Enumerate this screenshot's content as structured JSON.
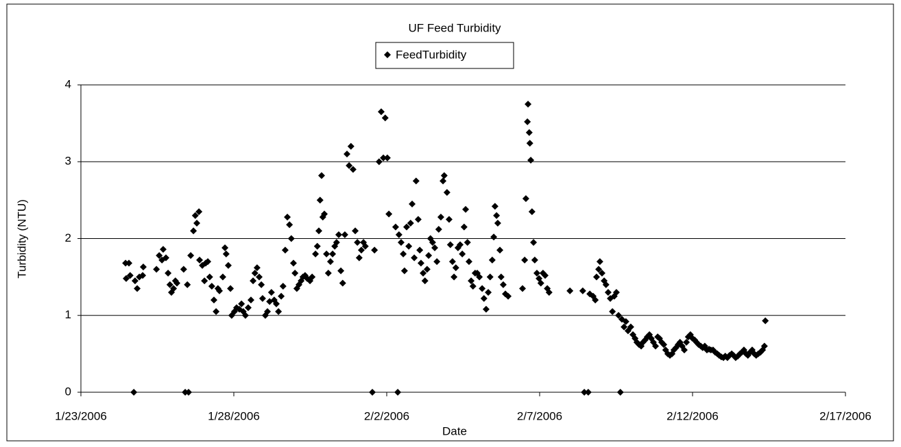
{
  "chart_data": {
    "type": "scatter",
    "title": "UF Feed Turbidity",
    "xlabel": "Date",
    "ylabel": "Turbidity (NTU)",
    "xlim": [
      38740,
      38765
    ],
    "xticks": [
      {
        "value": 38740,
        "label": "1/23/2006"
      },
      {
        "value": 38745,
        "label": "1/28/2006"
      },
      {
        "value": 38750,
        "label": "2/2/2006"
      },
      {
        "value": 38755,
        "label": "2/7/2006"
      },
      {
        "value": 38760,
        "label": "2/12/2006"
      },
      {
        "value": 38765,
        "label": "2/17/2006"
      }
    ],
    "ylim": [
      0,
      4
    ],
    "yticks": [
      0,
      1,
      2,
      3,
      4
    ],
    "grid": true,
    "legend": "top",
    "series": [
      {
        "name": "FeedTurbidity",
        "color": "#000000",
        "x": [
          38741.46,
          38741.57,
          38741.48,
          38741.61,
          38741.73,
          38741.77,
          38741.84,
          38741.91,
          38742.02,
          38742.04,
          38742.47,
          38742.56,
          38742.65,
          38742.69,
          38742.78,
          38742.85,
          38742.91,
          38742.96,
          38743.03,
          38743.09,
          38743.14,
          38743.36,
          38743.41,
          38743.48,
          38743.52,
          38743.59,
          38743.68,
          38743.74,
          38743.79,
          38743.86,
          38743.88,
          38743.97,
          38744.04,
          38744.08,
          38744.15,
          38744.21,
          38744.28,
          38744.35,
          38744.42,
          38744.48,
          38744.53,
          38744.64,
          38744.71,
          38744.75,
          38744.82,
          38744.89,
          38744.93,
          38745.02,
          38745.09,
          38745.18,
          38745.25,
          38745.31,
          38745.38,
          38745.47,
          38745.56,
          38745.63,
          38745.69,
          38745.76,
          38745.83,
          38745.9,
          38745.94,
          38746.03,
          38746.1,
          38746.17,
          38746.23,
          38746.32,
          38746.39,
          38746.46,
          38746.55,
          38746.61,
          38746.68,
          38746.75,
          38746.82,
          38746.88,
          38746.95,
          38747.0,
          38747.06,
          38747.13,
          38747.2,
          38747.26,
          38747.33,
          38747.4,
          38747.49,
          38747.56,
          38747.67,
          38747.73,
          38747.78,
          38747.82,
          38747.87,
          38747.91,
          38747.96,
          38748.03,
          38748.09,
          38748.16,
          38748.23,
          38748.3,
          38748.36,
          38748.43,
          38748.5,
          38748.56,
          38748.63,
          38748.7,
          38748.77,
          38748.83,
          38748.9,
          38748.97,
          38749.04,
          38749.1,
          38749.17,
          38749.24,
          38749.3,
          38749.53,
          38749.6,
          38749.75,
          38749.82,
          38749.89,
          38749.95,
          38750.02,
          38750.07,
          38750.29,
          38750.36,
          38750.4,
          38750.47,
          38750.54,
          38750.58,
          38750.65,
          38750.72,
          38750.78,
          38750.83,
          38750.9,
          38750.96,
          38751.03,
          38751.08,
          38751.12,
          38751.19,
          38751.25,
          38751.32,
          38751.37,
          38751.43,
          38751.5,
          38751.57,
          38751.64,
          38751.7,
          38751.77,
          38751.84,
          38751.88,
          38751.97,
          38752.04,
          38752.08,
          38752.15,
          38752.2,
          38752.26,
          38752.33,
          38752.4,
          38752.47,
          38752.53,
          38752.58,
          38752.64,
          38752.69,
          38752.76,
          38752.82,
          38752.89,
          38752.96,
          38753.03,
          38753.12,
          38753.18,
          38753.25,
          38753.32,
          38753.38,
          38753.45,
          38753.5,
          38753.54,
          38753.59,
          38753.63,
          38753.7,
          38753.74,
          38753.81,
          38753.88,
          38753.97,
          38754.44,
          38754.51,
          38754.55,
          38754.6,
          38754.62,
          38754.66,
          38754.68,
          38754.71,
          38754.75,
          38754.8,
          38754.84,
          38754.91,
          38754.98,
          38755.04,
          38755.11,
          38755.18,
          38755.25,
          38755.31,
          38755.99,
          38756.41,
          38756.46,
          38756.59,
          38756.64,
          38756.75,
          38756.82,
          38756.86,
          38756.93,
          38756.97,
          38757.04,
          38757.11,
          38757.17,
          38757.24,
          38757.31,
          38757.38,
          38757.44,
          38757.51,
          38757.58,
          38757.64,
          38757.69,
          38757.76,
          38757.82,
          38757.89,
          38757.98,
          38758.05,
          38758.12,
          38758.18,
          38758.25,
          38758.32,
          38758.38,
          38758.45,
          38758.52,
          38758.59,
          38758.65,
          38758.72,
          38758.79,
          38758.86,
          38758.92,
          38758.99,
          38759.06,
          38759.12,
          38759.19,
          38759.26,
          38759.33,
          38759.39,
          38759.46,
          38759.53,
          38759.59,
          38759.66,
          38759.73,
          38759.8,
          38759.86,
          38759.93,
          38760.0,
          38760.07,
          38760.13,
          38760.2,
          38760.27,
          38760.33,
          38760.4,
          38760.47,
          38760.54,
          38760.6,
          38760.67,
          38760.74,
          38760.81,
          38760.87,
          38760.94,
          38761.01,
          38761.07,
          38761.14,
          38761.21,
          38761.28,
          38761.34,
          38761.41,
          38761.48,
          38761.55,
          38761.61,
          38761.68,
          38761.75,
          38761.81,
          38761.88,
          38761.95,
          38762.02,
          38762.08,
          38762.15,
          38762.22,
          38762.29,
          38762.35,
          38762.38
        ],
        "values": [
          1.68,
          1.68,
          1.48,
          1.52,
          0,
          1.45,
          1.35,
          1.5,
          1.52,
          1.63,
          1.6,
          1.78,
          1.72,
          1.86,
          1.75,
          1.55,
          1.4,
          1.3,
          1.35,
          1.45,
          1.42,
          1.6,
          0,
          1.4,
          0,
          1.78,
          2.1,
          2.3,
          2.2,
          2.35,
          1.72,
          1.65,
          1.45,
          1.68,
          1.7,
          1.5,
          1.38,
          1.2,
          1.05,
          1.35,
          1.32,
          1.5,
          1.88,
          1.8,
          1.65,
          1.35,
          1.0,
          1.05,
          1.1,
          1.08,
          1.15,
          1.05,
          1.0,
          1.1,
          1.2,
          1.45,
          1.55,
          1.62,
          1.5,
          1.4,
          1.22,
          1.0,
          1.05,
          1.18,
          1.3,
          1.2,
          1.15,
          1.05,
          1.25,
          1.38,
          1.85,
          2.28,
          2.18,
          2.0,
          1.68,
          1.55,
          1.35,
          1.4,
          1.45,
          1.5,
          1.52,
          1.48,
          1.45,
          1.5,
          1.8,
          1.9,
          2.1,
          2.5,
          2.82,
          2.28,
          2.32,
          1.8,
          1.55,
          1.7,
          1.8,
          1.9,
          1.95,
          2.05,
          1.58,
          1.42,
          2.05,
          3.1,
          2.95,
          3.2,
          2.9,
          2.1,
          1.95,
          1.75,
          1.85,
          1.95,
          1.9,
          0,
          1.85,
          3.0,
          3.65,
          3.05,
          3.57,
          3.05,
          2.32,
          2.15,
          0,
          2.05,
          1.95,
          1.8,
          1.58,
          2.15,
          1.9,
          2.2,
          2.45,
          1.75,
          2.75,
          2.25,
          1.85,
          1.68,
          1.55,
          1.45,
          1.6,
          1.78,
          2.0,
          1.95,
          1.88,
          1.7,
          2.12,
          2.28,
          2.75,
          2.82,
          2.6,
          2.25,
          1.92,
          1.7,
          1.5,
          1.62,
          1.88,
          1.92,
          1.8,
          2.15,
          2.38,
          1.95,
          1.7,
          1.45,
          1.38,
          1.55,
          1.55,
          1.5,
          1.35,
          1.22,
          1.08,
          1.3,
          1.5,
          1.72,
          2.02,
          2.42,
          2.3,
          2.2,
          1.85,
          1.5,
          1.4,
          1.28,
          1.25,
          1.35,
          1.72,
          2.52,
          3.52,
          3.75,
          3.38,
          3.24,
          3.02,
          2.35,
          1.95,
          1.72,
          1.55,
          1.48,
          1.42,
          1.55,
          1.52,
          1.35,
          1.3,
          1.32,
          1.32,
          0,
          0,
          1.28,
          1.25,
          1.2,
          1.5,
          1.6,
          1.7,
          1.55,
          1.45,
          1.4,
          1.3,
          1.22,
          1.05,
          1.25,
          1.3,
          1.0,
          0,
          0.95,
          0.85,
          0.92,
          0.8,
          0.85,
          0.75,
          0.7,
          0.65,
          0.62,
          0.6,
          0.65,
          0.68,
          0.72,
          0.75,
          0.7,
          0.65,
          0.6,
          0.72,
          0.7,
          0.65,
          0.62,
          0.55,
          0.5,
          0.48,
          0.5,
          0.55,
          0.58,
          0.62,
          0.65,
          0.6,
          0.55,
          0.65,
          0.72,
          0.75,
          0.7,
          0.68,
          0.65,
          0.62,
          0.6,
          0.58,
          0.6,
          0.55,
          0.56,
          0.55,
          0.55,
          0.52,
          0.5,
          0.48,
          0.46,
          0.45,
          0.47,
          0.45,
          0.48,
          0.5,
          0.48,
          0.45,
          0.47,
          0.5,
          0.52,
          0.55,
          0.5,
          0.48,
          0.52,
          0.55,
          0.5,
          0.48,
          0.5,
          0.52,
          0.55,
          0.6,
          0.93
        ]
      }
    ]
  }
}
